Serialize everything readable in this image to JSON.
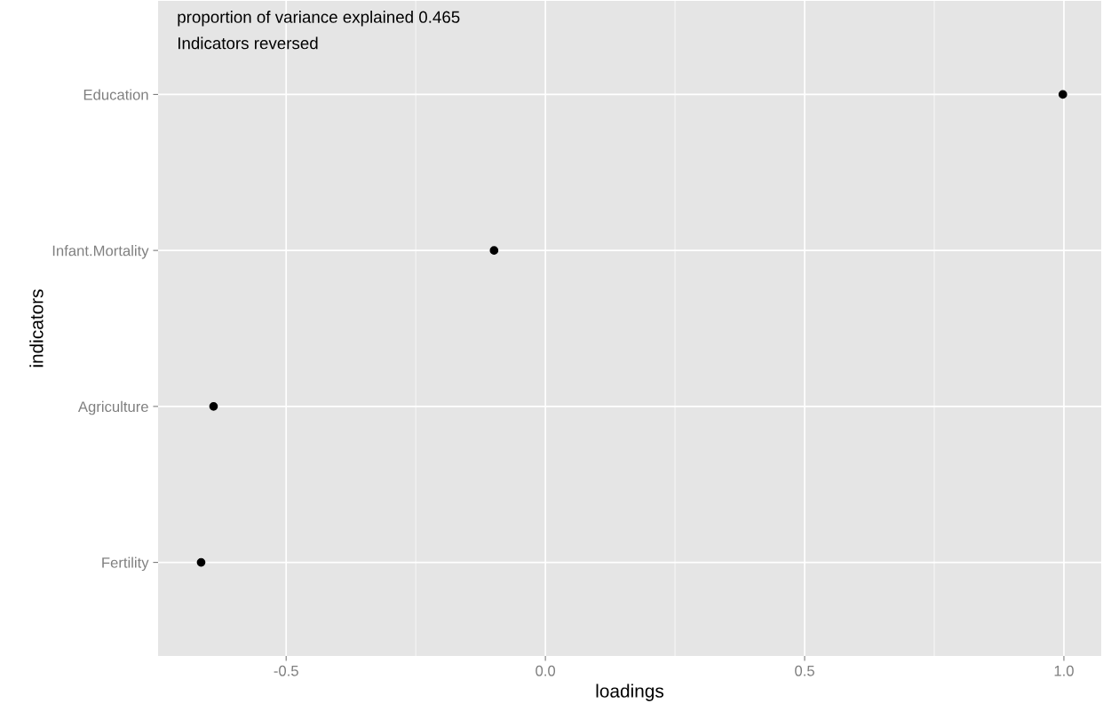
{
  "chart_data": {
    "type": "scatter",
    "orientation": "horizontal",
    "xlabel": "loadings",
    "ylabel": "indicators",
    "categories": [
      "Education",
      "Infant.Mortality",
      "Agriculture",
      "Fertility"
    ],
    "values": [
      0.998,
      -0.099,
      -0.64,
      -0.664
    ],
    "color": "#000000",
    "marker": "circle",
    "xlim": [
      -0.747,
      1.072
    ],
    "xticks": [
      {
        "value": -0.5,
        "label": "-0.5"
      },
      {
        "value": -0.25,
        "label": null
      },
      {
        "value": 0.0,
        "label": "0.0"
      },
      {
        "value": 0.25,
        "label": null
      },
      {
        "value": 0.5,
        "label": "0.5"
      },
      {
        "value": 0.75,
        "label": null
      },
      {
        "value": 1.0,
        "label": "1.0"
      }
    ],
    "grid": true,
    "annotations": [
      "proportion of variance explained 0.465",
      "Indicators reversed"
    ]
  }
}
